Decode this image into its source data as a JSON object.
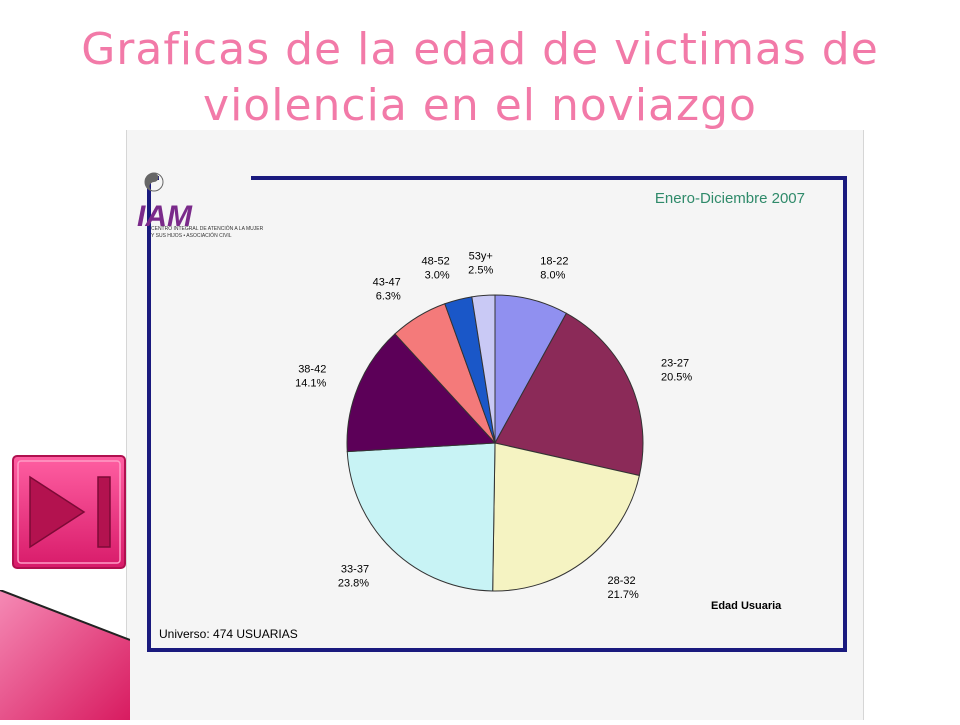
{
  "slide": {
    "title_line1": "Graficas de la edad de victimas de",
    "title_line2": "violencia en el noviazgo"
  },
  "logo": {
    "text": "IAM",
    "subtext1": "CENTRO INTEGRAL DE ATENCIÓN A LA MUJER",
    "subtext2": "Y SUS HIJOS • ASOCIACIÓN CIVIL"
  },
  "colors": {
    "title": "#f27aa8",
    "frame_border": "#1a1a7e",
    "period_text": "#2f8a6a",
    "nav_button": "#e8287a"
  },
  "chart_data": {
    "type": "pie",
    "period": "Enero-Diciembre 2007",
    "legend_title": "Edad Usuaria",
    "universe": "Universo: 474 USUARIAS",
    "slices": [
      {
        "label": "18-22",
        "value": 8.0,
        "display": "8.0%",
        "color": "#9090f0"
      },
      {
        "label": "23-27",
        "value": 20.5,
        "display": "20.5%",
        "color": "#8b2a58"
      },
      {
        "label": "28-32",
        "value": 21.7,
        "display": "21.7%",
        "color": "#f5f3c2"
      },
      {
        "label": "33-37",
        "value": 23.8,
        "display": "23.8%",
        "color": "#c8f3f5"
      },
      {
        "label": "38-42",
        "value": 14.1,
        "display": "14.1%",
        "color": "#5c0058"
      },
      {
        "label": "43-47",
        "value": 6.3,
        "display": "6.3%",
        "color": "#f47a7a"
      },
      {
        "label": "48-52",
        "value": 3.0,
        "display": "3.0%",
        "color": "#1a57c8"
      },
      {
        "label": "53y+",
        "value": 2.5,
        "display": "2.5%",
        "color": "#c9c9f5"
      }
    ]
  }
}
